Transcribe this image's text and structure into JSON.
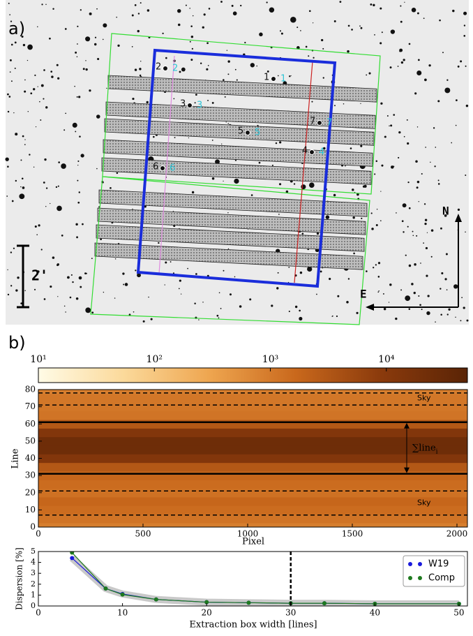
{
  "panel_a": {
    "label": "a)",
    "star_labels": [
      "1",
      "2",
      "3",
      "4",
      "5",
      "6",
      "7"
    ],
    "north": "N",
    "east": "E",
    "scale": "2'"
  },
  "panel_b_label": "b)",
  "chart_data": [
    {
      "type": "heatmap",
      "colorbar": {
        "lim": [
          10,
          50000
        ],
        "log": true,
        "colormap": [
          "#fffbe6",
          "#fbd99a",
          "#eea54f",
          "#c9681c",
          "#8a3a0c",
          "#5a2406"
        ],
        "ticks": [
          {
            "value": 10,
            "label": "10¹"
          },
          {
            "value": 100,
            "label": "10²"
          },
          {
            "value": 1000,
            "label": "10³"
          },
          {
            "value": 10000,
            "label": "10⁴"
          }
        ]
      },
      "y": [
        0,
        5,
        10,
        15,
        20,
        25,
        30,
        35,
        40,
        45,
        50,
        55,
        60,
        65,
        70,
        75,
        80
      ],
      "values": [
        900,
        1200,
        1500,
        1800,
        1300,
        1500,
        1800,
        3000,
        12000,
        25000,
        25000,
        12000,
        3000,
        1200,
        1100,
        1100,
        900
      ],
      "xlim": [
        0,
        2050
      ],
      "xticks": [
        0,
        500,
        1000,
        1500,
        2000
      ],
      "ylim": [
        0,
        80
      ],
      "yticks": [
        0,
        10,
        20,
        30,
        40,
        50,
        60,
        70,
        80
      ],
      "xlabel": "Pixel",
      "ylabel": "Line",
      "hlines": [
        {
          "y": 7,
          "style": "dashed"
        },
        {
          "y": 21,
          "style": "dashed"
        },
        {
          "y": 31,
          "style": "solid"
        },
        {
          "y": 61,
          "style": "solid"
        },
        {
          "y": 71,
          "style": "dashed"
        },
        {
          "y": 78,
          "style": "dashed"
        }
      ],
      "arrow": {
        "x": 1760,
        "y": [
          31,
          61
        ]
      },
      "annotations": [
        "Sky",
        "Sky"
      ],
      "sum_label": "∑line",
      "sum_sub": "i"
    },
    {
      "type": "scatter-line",
      "x": [
        4,
        8,
        10,
        14,
        20,
        25,
        30,
        34,
        40,
        50
      ],
      "series": [
        {
          "name": "W19",
          "color": "#1a1adc",
          "values": [
            4.4,
            1.6,
            1.1,
            0.6,
            0.35,
            0.3,
            0.25,
            0.25,
            0.2,
            0.2
          ]
        },
        {
          "name": "Comp",
          "color": "#1f7a1f",
          "values": [
            4.9,
            1.6,
            1.05,
            0.6,
            0.35,
            0.3,
            0.25,
            0.25,
            0.2,
            0.2
          ]
        }
      ],
      "xlim": [
        0,
        51
      ],
      "xticks": [
        0,
        10,
        20,
        30,
        40,
        50
      ],
      "ylim": [
        0,
        5
      ],
      "yticks": [
        0,
        1,
        2,
        3,
        4,
        5
      ],
      "vline": 30,
      "xlabel": "Extraction box width [lines]",
      "ylabel": "Dispersion [%]"
    }
  ]
}
